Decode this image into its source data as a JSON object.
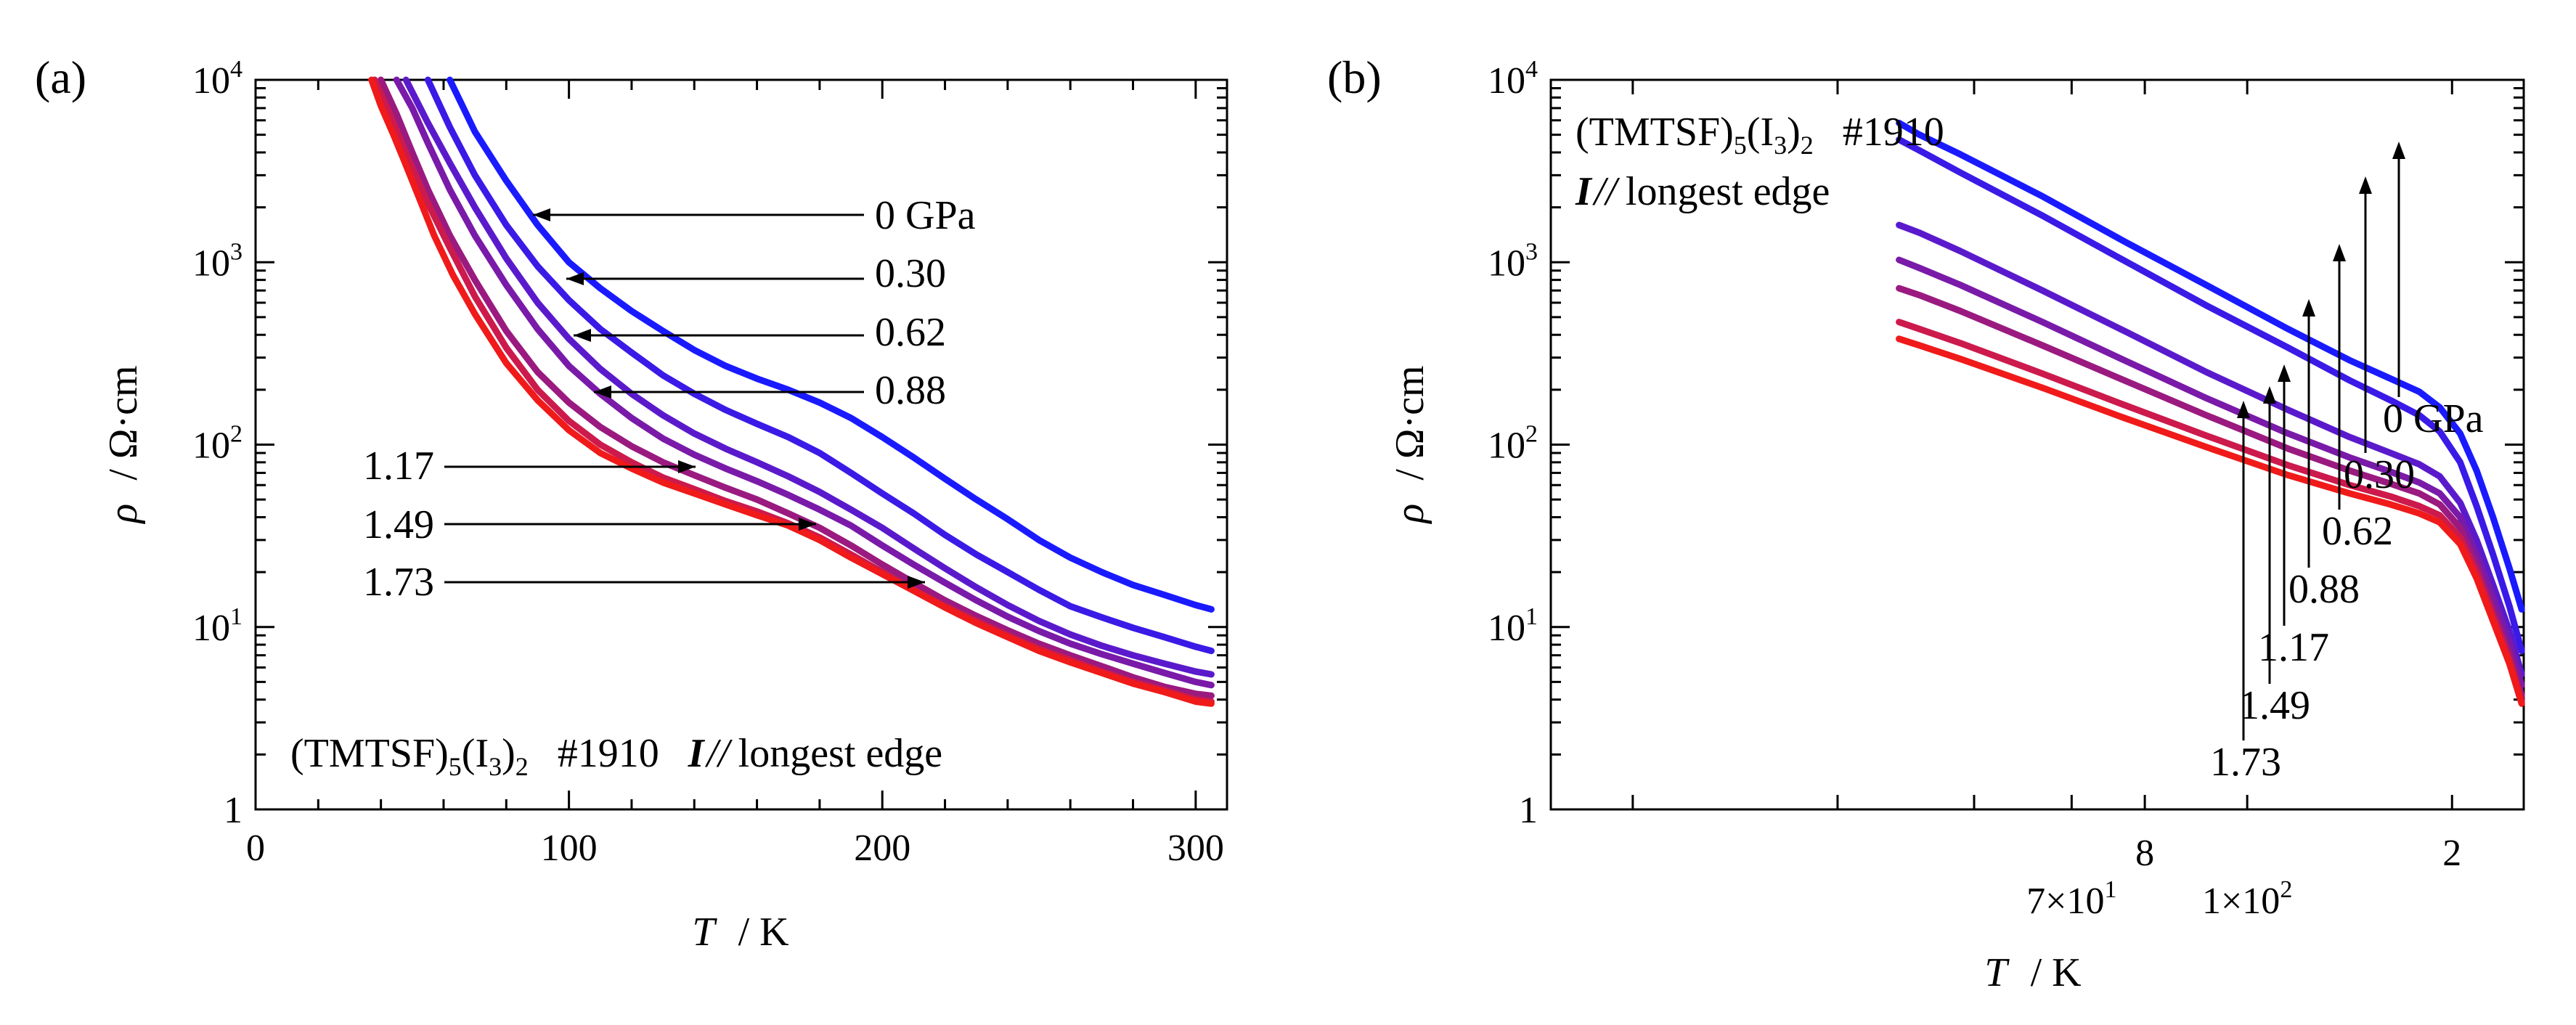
{
  "chart_data": [
    {
      "panel": "(a)",
      "type": "line",
      "title": "",
      "xlabel_symbol": "T",
      "xlabel_unit": "/ K",
      "ylabel_symbol": "ρ",
      "ylabel_unit": "/ Ω·cm",
      "xscale": "linear",
      "yscale": "log",
      "xlim": [
        0,
        310
      ],
      "ylim": [
        1,
        10000
      ],
      "xticks": [
        0,
        100,
        200,
        300
      ],
      "xtick_labels": [
        "0",
        "100",
        "200",
        "300"
      ],
      "yticks": [
        1,
        10,
        100,
        1000,
        10000
      ],
      "ytick_labels": [
        {
          "base": "1",
          "exp": ""
        },
        {
          "base": "10",
          "exp": "1"
        },
        {
          "base": "10",
          "exp": "2"
        },
        {
          "base": "10",
          "exp": "3"
        },
        {
          "base": "10",
          "exp": "4"
        }
      ],
      "annotation": {
        "compound": "(TMTSF)",
        "sub1": "5",
        "mid": "(I",
        "sub2": "3",
        "close": ")",
        "sub3": "2",
        "sample": "#1910",
        "current": "I",
        "parallel": "//",
        "direction": "longest edge"
      },
      "series": [
        {
          "name": "0 GPa",
          "label": "0 GPa",
          "color": "#1a1aff",
          "x": [
            62,
            70,
            80,
            90,
            100,
            110,
            120,
            130,
            140,
            150,
            160,
            170,
            180,
            190,
            200,
            210,
            220,
            230,
            240,
            250,
            260,
            270,
            280,
            290,
            300,
            305
          ],
          "y": [
            10000,
            5200,
            2800,
            1600,
            1000,
            720,
            540,
            420,
            330,
            270,
            230,
            200,
            170,
            140,
            110,
            85,
            65,
            50,
            39,
            30,
            24,
            20,
            17,
            15,
            13.2,
            12.5
          ]
        },
        {
          "name": "0.30",
          "label": "0.30",
          "color": "#3a1ae6",
          "x": [
            55,
            62,
            70,
            80,
            90,
            100,
            110,
            120,
            130,
            140,
            150,
            160,
            170,
            180,
            190,
            200,
            210,
            220,
            230,
            240,
            250,
            260,
            270,
            280,
            290,
            300,
            305
          ],
          "y": [
            10000,
            5500,
            3000,
            1600,
            950,
            620,
            430,
            320,
            240,
            190,
            155,
            130,
            110,
            90,
            70,
            54,
            42,
            32,
            25,
            20,
            16,
            13,
            11.3,
            9.9,
            8.8,
            7.8,
            7.4
          ]
        },
        {
          "name": "0.62",
          "label": "0.62",
          "color": "#5a1acc",
          "x": [
            48,
            55,
            62,
            70,
            80,
            90,
            100,
            110,
            120,
            130,
            140,
            150,
            160,
            170,
            180,
            190,
            200,
            210,
            220,
            230,
            240,
            250,
            260,
            270,
            280,
            290,
            300,
            305
          ],
          "y": [
            10000,
            5800,
            3500,
            2000,
            1050,
            600,
            380,
            260,
            190,
            145,
            115,
            95,
            80,
            67,
            55,
            44,
            35,
            27,
            21,
            16.5,
            13.2,
            10.8,
            9.1,
            7.9,
            7.0,
            6.3,
            5.7,
            5.5
          ]
        },
        {
          "name": "0.88",
          "label": "0.88",
          "color": "#7a1aa8",
          "x": [
            45,
            50,
            55,
            62,
            70,
            80,
            90,
            100,
            110,
            120,
            130,
            140,
            150,
            160,
            170,
            180,
            190,
            200,
            210,
            220,
            230,
            240,
            250,
            260,
            270,
            280,
            290,
            300,
            305
          ],
          "y": [
            10000,
            7000,
            4500,
            2500,
            1400,
            750,
            430,
            270,
            190,
            140,
            108,
            88,
            74,
            63,
            53,
            44,
            36,
            28,
            22,
            17.5,
            14,
            11.4,
            9.5,
            8.1,
            7.1,
            6.3,
            5.6,
            5.0,
            4.8
          ]
        },
        {
          "name": "1.17",
          "label": "1.17",
          "color": "#9a1a80",
          "x": [
            40,
            45,
            50,
            55,
            62,
            70,
            80,
            90,
            100,
            110,
            120,
            130,
            140,
            150,
            160,
            170,
            180,
            190,
            200,
            210,
            220,
            230,
            240,
            250,
            260,
            270,
            280,
            290,
            300,
            305
          ],
          "y": [
            10000,
            6500,
            4000,
            2500,
            1400,
            800,
            420,
            250,
            170,
            125,
            98,
            80,
            68,
            58,
            50,
            42,
            35,
            28,
            22,
            17.5,
            14,
            11.5,
            9.6,
            8.1,
            7.0,
            6.1,
            5.3,
            4.7,
            4.3,
            4.2
          ]
        },
        {
          "name": "1.49",
          "label": "1.49",
          "color": "#cc1a4d",
          "x": [
            38,
            42,
            46,
            50,
            55,
            62,
            70,
            80,
            90,
            100,
            110,
            120,
            130,
            140,
            150,
            160,
            170,
            180,
            190,
            200,
            210,
            220,
            230,
            240,
            250,
            260,
            270,
            280,
            290,
            300,
            305
          ],
          "y": [
            10000,
            7000,
            4800,
            3300,
            2100,
            1200,
            650,
            340,
            200,
            135,
            100,
            80,
            66,
            57,
            49,
            43,
            37,
            31,
            25,
            20,
            16,
            13,
            10.8,
            9.0,
            7.6,
            6.6,
            5.7,
            5.0,
            4.5,
            4.0,
            3.9
          ]
        },
        {
          "name": "1.73",
          "label": "1.73",
          "color": "#f01a1a",
          "x": [
            37,
            40,
            44,
            48,
            52,
            57,
            63,
            70,
            80,
            90,
            100,
            110,
            120,
            130,
            140,
            150,
            160,
            170,
            180,
            190,
            200,
            210,
            220,
            230,
            240,
            250,
            260,
            270,
            280,
            290,
            300,
            305
          ],
          "y": [
            10000,
            7200,
            5000,
            3400,
            2300,
            1400,
            850,
            520,
            280,
            175,
            120,
            90,
            74,
            62,
            54,
            47,
            41,
            36,
            30,
            24,
            19.5,
            15.8,
            12.8,
            10.5,
            8.8,
            7.4,
            6.4,
            5.6,
            4.9,
            4.4,
            3.9,
            3.8
          ]
        }
      ]
    },
    {
      "panel": "(b)",
      "type": "line",
      "title": "",
      "xlabel_symbol": "T",
      "xlabel_unit": "/ K",
      "ylabel_symbol": "ρ",
      "ylabel_unit": "/ Ω·cm",
      "xscale": "1000/T",
      "yscale": "log",
      "xlim": [
        3.25,
        27
      ],
      "ylim": [
        1,
        10000
      ],
      "xtick_labels": [
        {
          "at": 5,
          "text": "2"
        },
        {
          "at": 10,
          "text": "1×10",
          "exp": "2"
        },
        {
          "at": 12.5,
          "text": "8"
        },
        {
          "at": 14.286,
          "text": "7×10",
          "exp": "1"
        }
      ],
      "minor_ticks_at": [
        5,
        10,
        12.5,
        14.286,
        16.667,
        20,
        25
      ],
      "yticks": [
        1,
        10,
        100,
        1000,
        10000
      ],
      "ytick_labels": [
        {
          "base": "1",
          "exp": ""
        },
        {
          "base": "10",
          "exp": "1"
        },
        {
          "base": "10",
          "exp": "2"
        },
        {
          "base": "10",
          "exp": "3"
        },
        {
          "base": "10",
          "exp": "4"
        }
      ],
      "annotation": {
        "compound": "(TMTSF)",
        "sub1": "5",
        "mid": "(I",
        "sub2": "3",
        "close": ")",
        "sub3": "2",
        "sample": "#1910",
        "current": "I",
        "parallel": "//",
        "direction": "longest edge"
      },
      "series": [
        {
          "name": "0 GPa",
          "label": "0 GPa",
          "color": "#1a1aff",
          "x": [
            3.3,
            3.6,
            4.0,
            4.4,
            4.8,
            5.3,
            5.8,
            6.5,
            7.5,
            9,
            11,
            13,
            15,
            17,
            18,
            18.5
          ],
          "y": [
            12.5,
            21,
            40,
            72,
            115,
            160,
            195,
            230,
            290,
            430,
            750,
            1300,
            2300,
            3900,
            5000,
            5800
          ]
        },
        {
          "name": "0.30",
          "label": "0.30",
          "color": "#3a1ae6",
          "x": [
            3.3,
            3.6,
            4.0,
            4.4,
            4.8,
            5.3,
            5.8,
            6.5,
            7.5,
            9,
            11,
            13,
            15,
            17,
            18,
            18.5
          ],
          "y": [
            7.4,
            13,
            25,
            46,
            80,
            118,
            145,
            175,
            225,
            340,
            580,
            1020,
            1800,
            3100,
            4100,
            4700
          ]
        },
        {
          "name": "0.62",
          "label": "0.62",
          "color": "#5a1acc",
          "x": [
            3.3,
            3.6,
            4.0,
            4.4,
            4.8,
            5.3,
            5.8,
            6.5,
            7.5,
            9,
            11,
            13,
            15,
            17,
            18,
            18.5
          ],
          "y": [
            5.5,
            9.5,
            17,
            30,
            48,
            67,
            78,
            90,
            110,
            155,
            250,
            420,
            700,
            1150,
            1450,
            1600
          ]
        },
        {
          "name": "0.88",
          "label": "0.88",
          "color": "#7a1aa8",
          "x": [
            3.3,
            3.6,
            4.0,
            4.4,
            4.8,
            5.3,
            5.8,
            6.5,
            7.5,
            9,
            11,
            13,
            15,
            17,
            18,
            18.5
          ],
          "y": [
            4.8,
            8.2,
            14.5,
            25,
            40,
            54,
            62,
            71,
            85,
            115,
            180,
            290,
            470,
            750,
            930,
            1030
          ]
        },
        {
          "name": "1.17",
          "label": "1.17",
          "color": "#9a1a80",
          "x": [
            3.3,
            3.6,
            4.0,
            4.4,
            4.8,
            5.3,
            5.8,
            6.5,
            7.5,
            9,
            11,
            13,
            15,
            17,
            18,
            18.5
          ],
          "y": [
            4.2,
            7.2,
            12.5,
            22,
            35,
            47,
            54,
            61,
            72,
            95,
            145,
            225,
            350,
            540,
            660,
            720
          ]
        },
        {
          "name": "1.49",
          "label": "1.49",
          "color": "#cc1a4d",
          "x": [
            3.3,
            3.6,
            4.0,
            4.4,
            4.8,
            5.3,
            5.8,
            6.5,
            7.5,
            9,
            11,
            13,
            15,
            17,
            18,
            18.5
          ],
          "y": [
            3.9,
            6.6,
            11.5,
            20,
            31,
            41,
            46,
            52,
            60,
            77,
            112,
            165,
            245,
            360,
            430,
            470
          ]
        },
        {
          "name": "1.73",
          "label": "1.73",
          "color": "#f01a1a",
          "x": [
            3.3,
            3.6,
            4.0,
            4.4,
            4.8,
            5.3,
            5.8,
            6.5,
            7.5,
            9,
            11,
            13,
            15,
            17,
            18,
            18.5
          ],
          "y": [
            3.8,
            6.3,
            10.8,
            18.5,
            28.5,
            37.5,
            42,
            47,
            54,
            68,
            97,
            140,
            205,
            295,
            350,
            380
          ]
        }
      ]
    }
  ]
}
